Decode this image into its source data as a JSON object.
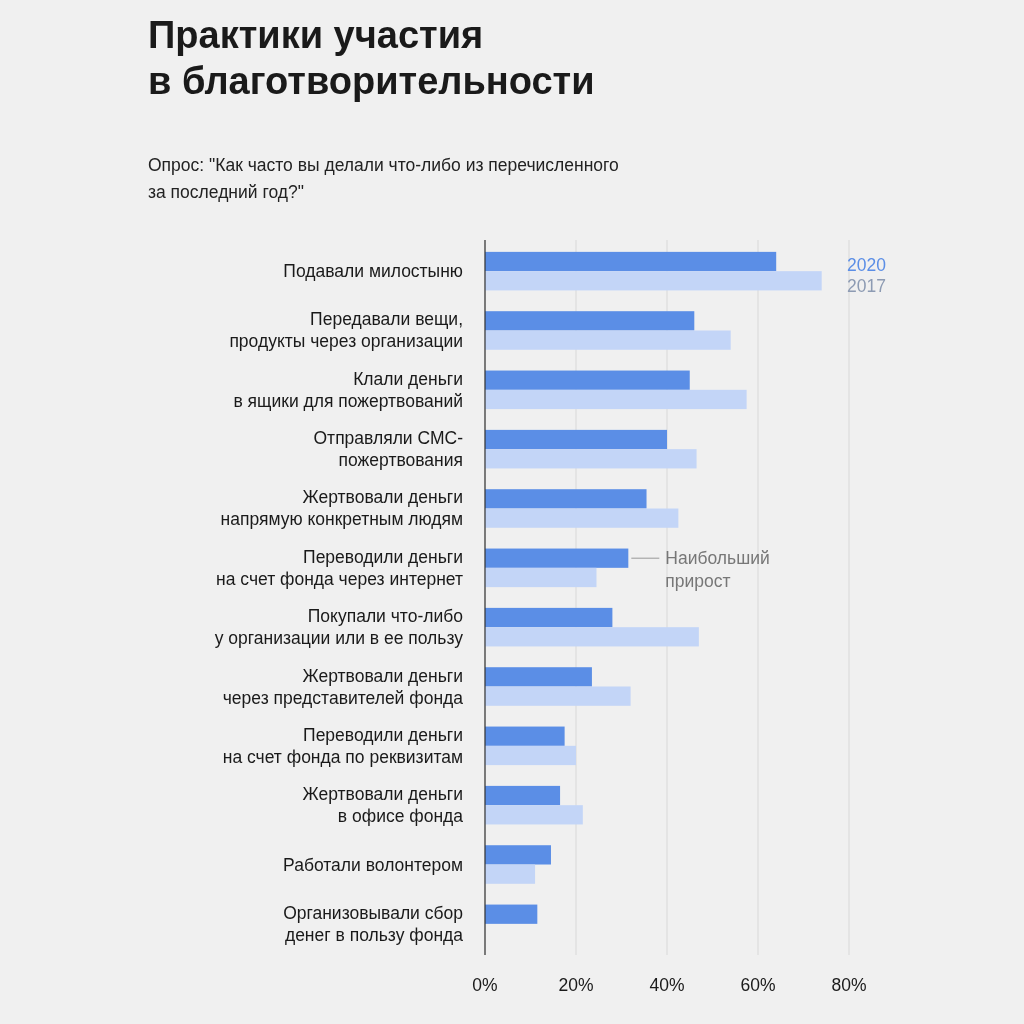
{
  "chart_data": {
    "type": "bar",
    "orientation": "horizontal",
    "title": "Практики участия\nв благотворительности",
    "subtitle": "Опрос: \"Как часто вы делали что-либо из перечисленного\nза последний год?\"",
    "categories": [
      "Подавали милостыню",
      "Передавали вещи,\nпродукты через организации",
      "Клали деньги\nв ящики для пожертвований",
      "Отправляли СМС-\nпожертвования",
      "Жертвовали деньги\nнапрямую конкретным людям",
      "Переводили деньги\nна счет фонда через интернет",
      "Покупали что-либо\nу организации или в ее пользу",
      "Жертвовали деньги\nчерез представителей фонда",
      "Переводили деньги\nна счет фонда по реквизитам",
      "Жертвовали деньги\nв офисе фонда",
      "Работали волонтером",
      "Организовывали сбор\nденег в пользу фонда"
    ],
    "series": [
      {
        "name": "2020",
        "color": "#5b8ee6",
        "values": [
          64,
          46,
          45,
          40,
          35.5,
          31.5,
          28,
          23.5,
          17.5,
          16.5,
          14.5,
          11.5
        ]
      },
      {
        "name": "2017",
        "color": "#c3d5f7",
        "values": [
          74,
          54,
          57.5,
          46.5,
          42.5,
          24.5,
          47,
          32,
          20,
          21.5,
          11,
          null
        ]
      }
    ],
    "xlim": [
      0,
      80
    ],
    "xticks": [
      {
        "value": 0,
        "label": "0%"
      },
      {
        "value": 20,
        "label": "20%"
      },
      {
        "value": 40,
        "label": "40%"
      },
      {
        "value": 60,
        "label": "60%"
      },
      {
        "value": 80,
        "label": "80%"
      }
    ],
    "grid": "x",
    "legend": "top right",
    "annotations": [
      {
        "text": "Наибольший\nприрост",
        "x": 31.5,
        "y": "Переводили деньги\nна счет фонда через интернет"
      }
    ]
  }
}
